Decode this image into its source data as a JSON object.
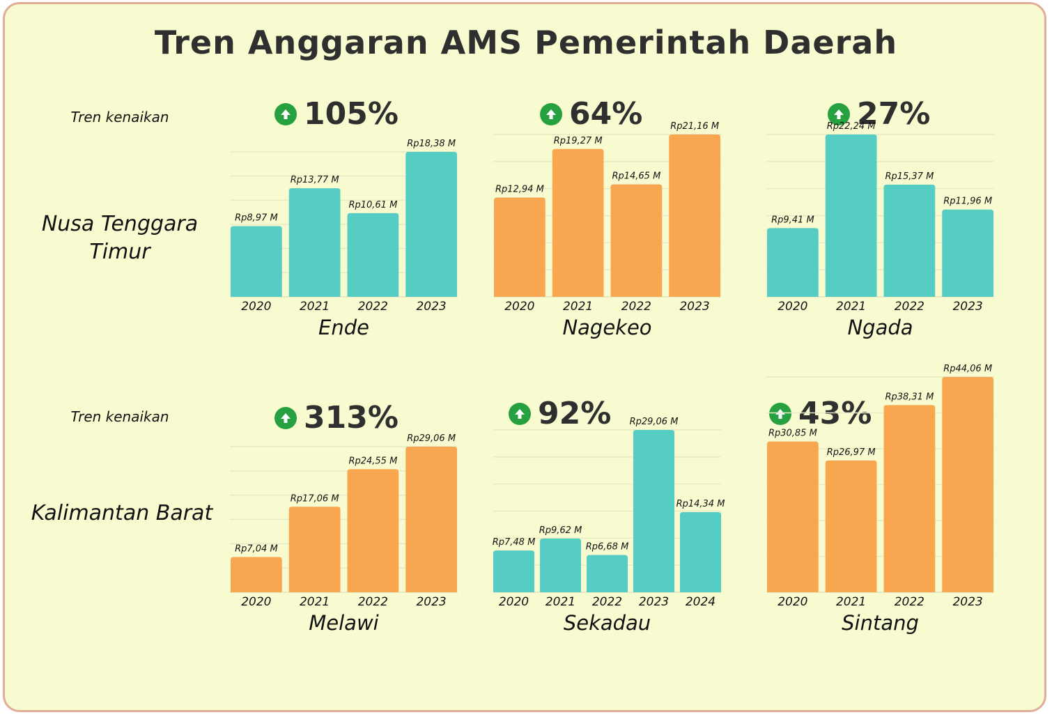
{
  "title": "Tren Anggaran AMS Pemerintah Daerah",
  "colors": {
    "teal": "#56cdc2",
    "orange": "#f9a650",
    "arrow": "#27a03f"
  },
  "rows": [
    {
      "trend_label": "Tren kenaikan",
      "region": "Nusa Tenggara Timur"
    },
    {
      "trend_label": "Tren kenaikan",
      "region": "Kalimantan Barat"
    }
  ],
  "percents": [
    "105%",
    "64%",
    "27%",
    "313%",
    "92%",
    "43%"
  ],
  "chart_data": [
    {
      "type": "bar",
      "title": "Ende",
      "color": "teal",
      "growth": "105%",
      "categories": [
        "2020",
        "2021",
        "2022",
        "2023"
      ],
      "values": [
        8.97,
        13.77,
        10.61,
        18.38
      ],
      "labels": [
        "Rp8,97 M",
        "Rp13,77 M",
        "Rp10,61 M",
        "Rp18,38 M"
      ],
      "grid": true
    },
    {
      "type": "bar",
      "title": "Nagekeo",
      "color": "orange",
      "growth": "64%",
      "categories": [
        "2020",
        "2021",
        "2022",
        "2023"
      ],
      "values": [
        12.94,
        19.27,
        14.65,
        21.16
      ],
      "labels": [
        "Rp12,94 M",
        "Rp19,27 M",
        "Rp14,65 M",
        "Rp21,16 M"
      ],
      "grid": true
    },
    {
      "type": "bar",
      "title": "Ngada",
      "color": "teal",
      "growth": "27%",
      "categories": [
        "2020",
        "2021",
        "2022",
        "2023"
      ],
      "values": [
        9.41,
        22.24,
        15.37,
        11.96
      ],
      "labels": [
        "Rp9,41 M",
        "Rp22,24 M",
        "Rp15,37 M",
        "Rp11,96 M"
      ],
      "grid": true
    },
    {
      "type": "bar",
      "title": "Melawi",
      "color": "orange",
      "growth": "313%",
      "categories": [
        "2020",
        "2021",
        "2022",
        "2023"
      ],
      "values": [
        7.04,
        17.06,
        24.55,
        29.06
      ],
      "labels": [
        "Rp7,04 M",
        "Rp17,06 M",
        "Rp24,55 M",
        "Rp29,06 M"
      ],
      "grid": true
    },
    {
      "type": "bar",
      "title": "Sekadau",
      "color": "teal",
      "growth": "92%",
      "categories": [
        "2020",
        "2021",
        "2022",
        "2023",
        "2024"
      ],
      "values": [
        7.48,
        9.62,
        6.68,
        29.06,
        14.34
      ],
      "labels": [
        "Rp7,48 M",
        "Rp9,62 M",
        "Rp6,68 M",
        "Rp29,06 M",
        "Rp14,34 M"
      ],
      "grid": true
    },
    {
      "type": "bar",
      "title": "Sintang",
      "color": "orange",
      "growth": "43%",
      "categories": [
        "2020",
        "2021",
        "2022",
        "2023"
      ],
      "values": [
        30.85,
        26.97,
        38.31,
        44.06
      ],
      "labels": [
        "Rp30,85 M",
        "Rp26,97 M",
        "Rp38,31 M",
        "Rp44,06 M"
      ],
      "grid": true
    }
  ]
}
